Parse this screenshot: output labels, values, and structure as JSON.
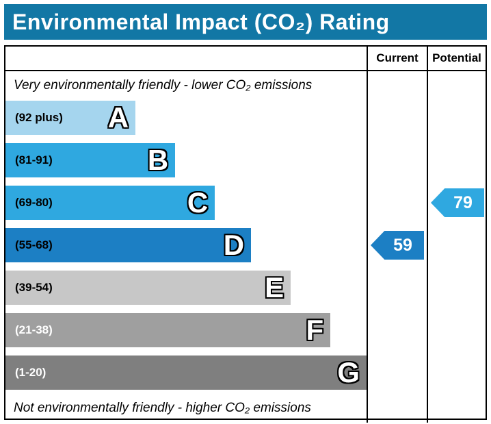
{
  "colors": {
    "title_bar_bg": "#1277a5",
    "border": "#000000"
  },
  "title": "Environmental Impact (CO₂) Rating",
  "header": {
    "current_label": "Current",
    "potential_label": "Potential"
  },
  "chart_data": {
    "type": "bar",
    "title": "Environmental Impact (CO₂) Rating",
    "top_note": "Very environmentally friendly - lower CO₂ emissions",
    "bottom_note": "Not environmentally friendly - higher CO₂ emissions",
    "bands": [
      {
        "letter": "A",
        "range": "(92 plus)",
        "color": "#a5d5ee",
        "range_text_color": "#000000",
        "width_pct": 36
      },
      {
        "letter": "B",
        "range": "(81-91)",
        "color": "#2fa8e0",
        "range_text_color": "#000000",
        "width_pct": 47
      },
      {
        "letter": "C",
        "range": "(69-80)",
        "color": "#2fa8e0",
        "range_text_color": "#000000",
        "width_pct": 58
      },
      {
        "letter": "D",
        "range": "(55-68)",
        "color": "#1c7fc4",
        "range_text_color": "#000000",
        "width_pct": 68
      },
      {
        "letter": "E",
        "range": "(39-54)",
        "color": "#c7c7c7",
        "range_text_color": "#000000",
        "width_pct": 79
      },
      {
        "letter": "F",
        "range": "(21-38)",
        "color": "#9f9f9f",
        "range_text_color": "#ffffff",
        "width_pct": 90
      },
      {
        "letter": "G",
        "range": "(1-20)",
        "color": "#7f7f7f",
        "range_text_color": "#ffffff",
        "width_pct": 100
      }
    ],
    "current": {
      "value": 59,
      "band": "D",
      "color": "#1c7fc4"
    },
    "potential": {
      "value": 79,
      "band": "C",
      "color": "#2fa8e0"
    }
  }
}
